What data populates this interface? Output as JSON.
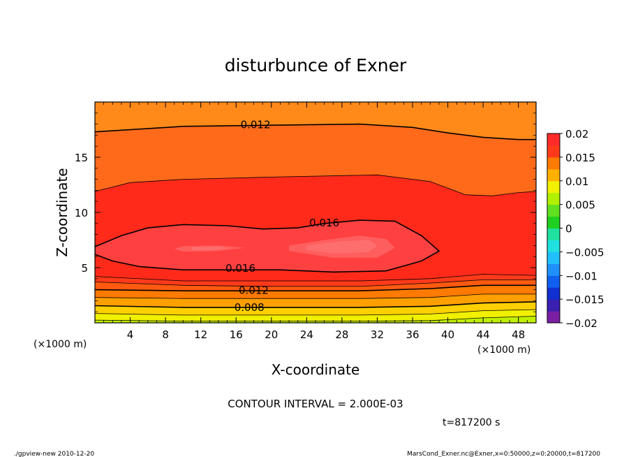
{
  "chart_data": {
    "type": "heatmap",
    "title": "disturbunce of Exner",
    "xlabel": "X-coordinate",
    "ylabel": "Z-coordinate",
    "x_unit": "(×1000 m)",
    "x_ticks": [
      4,
      8,
      12,
      16,
      20,
      24,
      28,
      32,
      36,
      40,
      44,
      48
    ],
    "y_ticks": [
      5,
      10,
      15
    ],
    "xlim": [
      0,
      50
    ],
    "ylim": [
      0,
      20
    ],
    "contour_interval_text": "CONTOUR INTERVAL = 2.000E-03",
    "contour_labels": [
      {
        "text": "0.012",
        "x": 18.2,
        "z": 18.0
      },
      {
        "text": "0.016",
        "x": 26.0,
        "z": 9.1
      },
      {
        "text": "0.016",
        "x": 16.5,
        "z": 5.0
      },
      {
        "text": "0.012",
        "x": 18.0,
        "z": 3.0
      },
      {
        "text": "0.008",
        "x": 17.5,
        "z": 1.45
      }
    ],
    "colorbar": {
      "min": -0.02,
      "max": 0.02,
      "tick_labels": [
        "0.02",
        "0.015",
        "0.01",
        "0.005",
        "0",
        "−0.005",
        "−0.01",
        "−0.015",
        "−0.02"
      ]
    },
    "contour_lines": [
      {
        "value": 0.012,
        "style": "thick",
        "points": [
          [
            0,
            17.3
          ],
          [
            10,
            17.8
          ],
          [
            20,
            17.9
          ],
          [
            30,
            18.0
          ],
          [
            36,
            17.7
          ],
          [
            40,
            17.2
          ],
          [
            44,
            16.8
          ],
          [
            48,
            16.6
          ],
          [
            50,
            16.6
          ]
        ]
      },
      {
        "value": 0.014,
        "style": "thin",
        "points": [
          [
            0,
            11.9
          ],
          [
            4,
            12.7
          ],
          [
            10,
            13.0
          ],
          [
            20,
            13.2
          ],
          [
            32,
            13.4
          ],
          [
            38,
            12.8
          ],
          [
            42,
            11.6
          ],
          [
            45,
            11.5
          ],
          [
            48,
            11.8
          ],
          [
            50,
            11.9
          ]
        ]
      },
      {
        "value": 0.016,
        "style": "thick",
        "closed": true,
        "points": [
          [
            0,
            6.9
          ],
          [
            3,
            7.9
          ],
          [
            6,
            8.6
          ],
          [
            10,
            8.9
          ],
          [
            15,
            8.8
          ],
          [
            19,
            8.5
          ],
          [
            23,
            8.6
          ],
          [
            26,
            9.0
          ],
          [
            30,
            9.3
          ],
          [
            34,
            9.2
          ],
          [
            37,
            7.9
          ],
          [
            39,
            6.5
          ],
          [
            37,
            5.6
          ],
          [
            33,
            4.7
          ],
          [
            27,
            4.6
          ],
          [
            21,
            4.8
          ],
          [
            15,
            4.8
          ],
          [
            10,
            4.8
          ],
          [
            5,
            5.1
          ],
          [
            2,
            5.6
          ],
          [
            0,
            6.2
          ]
        ]
      },
      {
        "value": 0.014,
        "style": "thin",
        "points": [
          [
            0,
            4.2
          ],
          [
            10,
            3.8
          ],
          [
            20,
            3.8
          ],
          [
            30,
            3.8
          ],
          [
            38,
            4.0
          ],
          [
            44,
            4.4
          ],
          [
            50,
            4.3
          ]
        ]
      },
      {
        "value": 0.013,
        "style": "thin",
        "points": [
          [
            0,
            3.7
          ],
          [
            10,
            3.4
          ],
          [
            20,
            3.3
          ],
          [
            30,
            3.3
          ],
          [
            38,
            3.6
          ],
          [
            44,
            3.9
          ],
          [
            50,
            3.9
          ]
        ]
      },
      {
        "value": 0.012,
        "style": "thick",
        "points": [
          [
            0,
            3.0
          ],
          [
            10,
            2.9
          ],
          [
            20,
            2.9
          ],
          [
            30,
            2.9
          ],
          [
            38,
            3.1
          ],
          [
            44,
            3.4
          ],
          [
            50,
            3.4
          ]
        ]
      },
      {
        "value": 0.01,
        "style": "thin",
        "points": [
          [
            0,
            2.3
          ],
          [
            10,
            2.2
          ],
          [
            20,
            2.2
          ],
          [
            30,
            2.2
          ],
          [
            38,
            2.3
          ],
          [
            44,
            2.6
          ],
          [
            50,
            2.6
          ]
        ]
      },
      {
        "value": 0.008,
        "style": "thick",
        "points": [
          [
            0,
            1.55
          ],
          [
            10,
            1.4
          ],
          [
            20,
            1.4
          ],
          [
            30,
            1.4
          ],
          [
            38,
            1.5
          ],
          [
            44,
            1.8
          ],
          [
            50,
            1.9
          ]
        ]
      },
      {
        "value": 0.006,
        "style": "thin",
        "points": [
          [
            0,
            0.85
          ],
          [
            10,
            0.7
          ],
          [
            20,
            0.7
          ],
          [
            30,
            0.7
          ],
          [
            38,
            0.8
          ],
          [
            44,
            1.1
          ],
          [
            50,
            1.2
          ]
        ]
      },
      {
        "value": 0.004,
        "style": "thin",
        "points": [
          [
            0,
            0.25
          ],
          [
            10,
            0.15
          ],
          [
            20,
            0.15
          ],
          [
            30,
            0.15
          ],
          [
            38,
            0.2
          ],
          [
            44,
            0.45
          ],
          [
            50,
            0.6
          ]
        ]
      }
    ],
    "fill_bands": [
      {
        "color": "#ff5e5e",
        "closed": true,
        "points": [
          [
            10,
            6.95
          ],
          [
            14,
            7.0
          ],
          [
            17,
            6.8
          ],
          [
            14,
            6.5
          ],
          [
            10,
            6.45
          ],
          [
            9,
            6.7
          ]
        ]
      },
      {
        "color": "#ff5e5e",
        "closed": true,
        "points": [
          [
            22,
            7.0
          ],
          [
            26,
            7.5
          ],
          [
            30,
            7.9
          ],
          [
            33,
            7.6
          ],
          [
            34,
            6.8
          ],
          [
            32,
            5.9
          ],
          [
            27,
            5.9
          ],
          [
            22,
            6.5
          ]
        ]
      },
      {
        "color": "#ff6e6e",
        "closed": true,
        "points": [
          [
            11,
            6.85
          ],
          [
            14,
            6.9
          ],
          [
            15,
            6.75
          ],
          [
            13,
            6.55
          ],
          [
            11,
            6.55
          ]
        ]
      },
      {
        "color": "#ff6e6e",
        "closed": true,
        "points": [
          [
            24,
            7.0
          ],
          [
            28,
            7.4
          ],
          [
            31,
            7.5
          ],
          [
            32,
            7.0
          ],
          [
            31,
            6.4
          ],
          [
            27,
            6.3
          ],
          [
            24,
            6.6
          ]
        ]
      }
    ]
  },
  "footer": {
    "time": "t=817200 s",
    "left": "./gpview-new  2010-12-20",
    "right": "MarsCond_Exner.nc@Exner,x=0:50000,z=0:20000,t=817200"
  }
}
